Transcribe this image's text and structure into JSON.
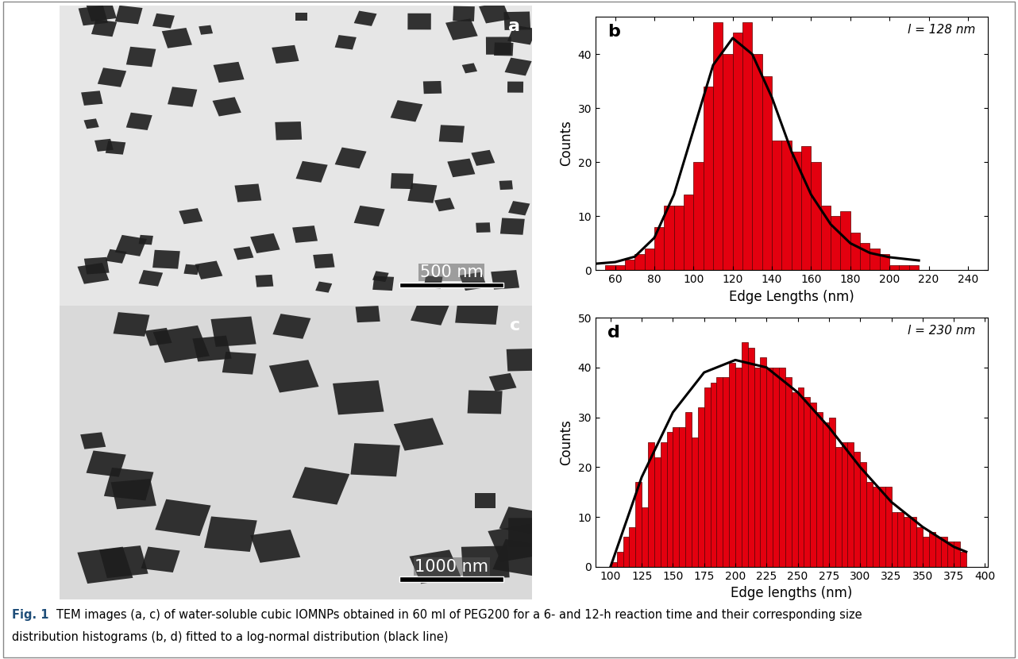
{
  "chart_data": [
    {
      "type": "histogram",
      "panel": "b",
      "annotation": "l = 128 nm",
      "x_label": "Edge Lengths (nm)",
      "y_label": "Counts",
      "color": "#e3000f",
      "bins": [
        55,
        60,
        65,
        70,
        75,
        80,
        85,
        90,
        95,
        100,
        105,
        110,
        115,
        120,
        125,
        130,
        135,
        140,
        145,
        150,
        155,
        160,
        165,
        170,
        175,
        180,
        185,
        190,
        195,
        200,
        205,
        210,
        215
      ],
      "counts": [
        1,
        1,
        2,
        3,
        4,
        8,
        12,
        12,
        14,
        20,
        34,
        46,
        40,
        44,
        46,
        40,
        36,
        24,
        24,
        22,
        23,
        20,
        12,
        10,
        11,
        7,
        5,
        4,
        3,
        1,
        1,
        1
      ],
      "fit": {
        "name": "log-normal",
        "color": "#000000",
        "x": [
          50,
          60,
          70,
          80,
          90,
          100,
          110,
          120,
          130,
          140,
          150,
          160,
          170,
          180,
          190,
          200,
          210,
          215
        ],
        "values": [
          1.2,
          1.5,
          2.5,
          6,
          14,
          26,
          38,
          43,
          40,
          32,
          22,
          14,
          8.5,
          5,
          3.2,
          2.4,
          2,
          1.8
        ]
      },
      "xlim": [
        50,
        250
      ],
      "xticks": [
        60,
        80,
        100,
        120,
        140,
        160,
        180,
        200,
        220,
        240
      ],
      "ylim": [
        0,
        47
      ],
      "yticks": [
        0,
        10,
        20,
        30,
        40
      ]
    },
    {
      "type": "histogram",
      "panel": "d",
      "annotation": "l = 230 nm",
      "x_label": "Edge lengths (nm)",
      "y_label": "Counts",
      "color": "#e3000f",
      "bins": [
        100,
        105,
        110,
        115,
        120,
        125,
        130,
        135,
        140,
        145,
        150,
        155,
        160,
        165,
        170,
        175,
        180,
        185,
        190,
        195,
        200,
        205,
        210,
        215,
        220,
        225,
        230,
        235,
        240,
        245,
        250,
        255,
        260,
        265,
        270,
        275,
        280,
        285,
        290,
        295,
        300,
        305,
        310,
        315,
        320,
        325,
        330,
        335,
        340,
        345,
        350,
        355,
        360,
        365,
        370,
        375,
        380,
        385
      ],
      "counts": [
        1,
        3,
        6,
        8,
        17,
        12,
        25,
        22,
        25,
        27,
        28,
        28,
        31,
        26,
        32,
        36,
        37,
        38,
        38,
        41,
        40,
        45,
        44,
        40,
        42,
        40,
        40,
        40,
        38,
        35,
        36,
        34,
        33,
        31,
        29,
        30,
        24,
        25,
        25,
        23,
        21,
        17,
        16,
        16,
        16,
        11,
        11,
        10,
        10,
        8,
        6,
        7,
        6,
        6,
        5,
        5,
        3
      ],
      "fit": {
        "name": "log-normal",
        "color": "#000000",
        "x": [
          100,
          125,
          150,
          175,
          200,
          225,
          250,
          275,
          300,
          325,
          350,
          375,
          385
        ],
        "values": [
          0,
          18,
          31,
          39,
          41.5,
          40,
          35,
          28,
          20,
          13,
          8,
          4,
          3
        ]
      },
      "xlim": [
        88,
        402
      ],
      "xticks": [
        100,
        125,
        150,
        175,
        200,
        225,
        250,
        275,
        300,
        325,
        350,
        375,
        400
      ],
      "ylim": [
        0,
        50
      ],
      "yticks": [
        0,
        10,
        20,
        30,
        40,
        50
      ]
    }
  ],
  "images": [
    {
      "panel": "a",
      "scale_bar": "500 nm"
    },
    {
      "panel": "c",
      "scale_bar": "1000 nm"
    }
  ],
  "caption": {
    "label": "Fig. 1",
    "lines": [
      "TEM images (a, c) of water-soluble cubic IOMNPs obtained in 60 ml of PEG200 for a 6- and 12-h reaction time and their corresponding size",
      "distribution histograms (b, d) fitted to a log-normal distribution (black line)"
    ]
  }
}
